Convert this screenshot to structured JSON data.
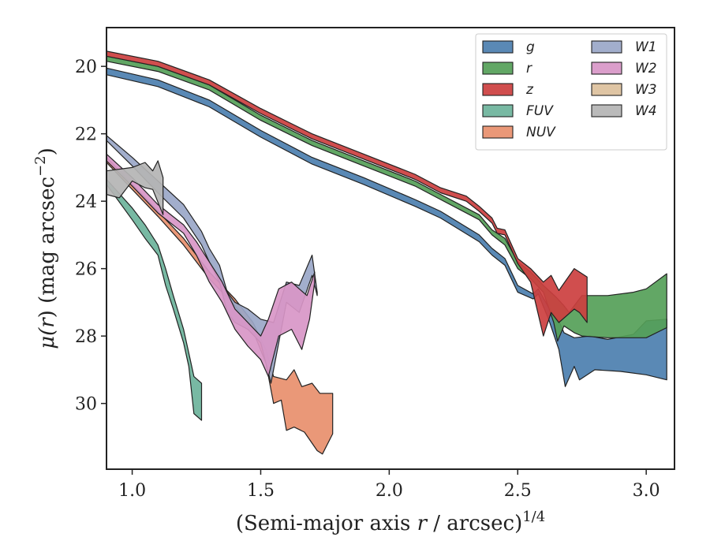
{
  "chart_data": {
    "type": "area",
    "xlabel_parts": [
      "(Semi-major axis ",
      "r",
      " / arcsec)",
      "1/4"
    ],
    "ylabel_parts": [
      "μ(",
      "r",
      ") (mag arcsec",
      "−2",
      ")"
    ],
    "xlim": [
      0.9,
      3.11
    ],
    "ylim": [
      31.95,
      18.85
    ],
    "y_inverted": true,
    "xticks": [
      1.0,
      1.5,
      2.0,
      2.5,
      3.0
    ],
    "xtick_labels": [
      "1.0",
      "1.5",
      "2.0",
      "2.5",
      "3.0"
    ],
    "yticks": [
      20,
      22,
      24,
      26,
      28,
      30
    ],
    "ytick_labels": [
      "20",
      "22",
      "24",
      "26",
      "28",
      "30"
    ],
    "grid": false,
    "legend_position": "top-right",
    "legend_columns": 2,
    "series": [
      {
        "name": "g",
        "color": "#4c7faf",
        "upper": [
          [
            0.9,
            20.05
          ],
          [
            1.1,
            20.4
          ],
          [
            1.3,
            21.0
          ],
          [
            1.5,
            21.9
          ],
          [
            1.7,
            22.7
          ],
          [
            1.9,
            23.3
          ],
          [
            2.1,
            23.95
          ],
          [
            2.2,
            24.3
          ],
          [
            2.35,
            25.0
          ],
          [
            2.4,
            25.4
          ],
          [
            2.45,
            25.7
          ],
          [
            2.5,
            26.5
          ],
          [
            2.56,
            26.75
          ],
          [
            2.58,
            26.6
          ],
          [
            2.62,
            27.15
          ],
          [
            2.66,
            27.55
          ],
          [
            2.68,
            27.9
          ],
          [
            2.72,
            28.05
          ],
          [
            2.78,
            28.0
          ],
          [
            2.85,
            28.1
          ],
          [
            2.95,
            27.95
          ],
          [
            3.0,
            27.55
          ],
          [
            3.08,
            27.5
          ]
        ],
        "lower": [
          [
            0.9,
            20.25
          ],
          [
            1.1,
            20.6
          ],
          [
            1.3,
            21.2
          ],
          [
            1.5,
            22.1
          ],
          [
            1.7,
            22.9
          ],
          [
            1.9,
            23.5
          ],
          [
            2.1,
            24.15
          ],
          [
            2.2,
            24.5
          ],
          [
            2.35,
            25.2
          ],
          [
            2.4,
            25.6
          ],
          [
            2.45,
            25.9
          ],
          [
            2.5,
            26.7
          ],
          [
            2.56,
            26.9
          ],
          [
            2.58,
            26.75
          ],
          [
            2.62,
            27.5
          ],
          [
            2.66,
            28.4
          ],
          [
            2.685,
            29.5
          ],
          [
            2.72,
            28.9
          ],
          [
            2.74,
            29.3
          ],
          [
            2.8,
            29.0
          ],
          [
            2.9,
            29.05
          ],
          [
            3.0,
            29.15
          ],
          [
            3.08,
            29.3
          ]
        ]
      },
      {
        "name": "r",
        "color": "#55a058",
        "upper": [
          [
            0.9,
            19.7
          ],
          [
            1.1,
            20.0
          ],
          [
            1.3,
            20.55
          ],
          [
            1.5,
            21.45
          ],
          [
            1.7,
            22.2
          ],
          [
            1.9,
            22.8
          ],
          [
            2.1,
            23.4
          ],
          [
            2.2,
            23.8
          ],
          [
            2.35,
            24.4
          ],
          [
            2.4,
            24.85
          ],
          [
            2.45,
            25.1
          ],
          [
            2.5,
            25.8
          ],
          [
            2.55,
            26.1
          ],
          [
            2.6,
            26.5
          ],
          [
            2.65,
            26.85
          ],
          [
            2.68,
            27.1
          ],
          [
            2.7,
            27.3
          ],
          [
            2.75,
            26.8
          ],
          [
            2.85,
            26.8
          ],
          [
            2.95,
            26.7
          ],
          [
            3.0,
            26.6
          ],
          [
            3.08,
            26.15
          ]
        ],
        "lower": [
          [
            0.9,
            19.85
          ],
          [
            1.1,
            20.15
          ],
          [
            1.3,
            20.7
          ],
          [
            1.5,
            21.6
          ],
          [
            1.7,
            22.35
          ],
          [
            1.9,
            22.95
          ],
          [
            2.1,
            23.55
          ],
          [
            2.2,
            23.95
          ],
          [
            2.35,
            24.55
          ],
          [
            2.4,
            25.0
          ],
          [
            2.45,
            25.3
          ],
          [
            2.5,
            26.0
          ],
          [
            2.55,
            26.3
          ],
          [
            2.6,
            26.7
          ],
          [
            2.64,
            27.6
          ],
          [
            2.655,
            28.15
          ],
          [
            2.68,
            27.7
          ],
          [
            2.72,
            27.9
          ],
          [
            2.75,
            28.0
          ],
          [
            2.85,
            28.05
          ],
          [
            2.95,
            28.05
          ],
          [
            3.0,
            28.05
          ],
          [
            3.08,
            27.75
          ]
        ]
      },
      {
        "name": "z",
        "color": "#cc3f3f",
        "upper": [
          [
            0.9,
            19.55
          ],
          [
            1.1,
            19.85
          ],
          [
            1.3,
            20.4
          ],
          [
            1.5,
            21.25
          ],
          [
            1.7,
            22.0
          ],
          [
            1.9,
            22.6
          ],
          [
            2.1,
            23.2
          ],
          [
            2.2,
            23.6
          ],
          [
            2.3,
            23.85
          ],
          [
            2.35,
            24.15
          ],
          [
            2.4,
            24.5
          ],
          [
            2.42,
            24.8
          ],
          [
            2.45,
            24.85
          ],
          [
            2.5,
            25.7
          ],
          [
            2.55,
            26.0
          ],
          [
            2.6,
            26.4
          ],
          [
            2.63,
            26.2
          ],
          [
            2.66,
            26.65
          ],
          [
            2.72,
            26.0
          ],
          [
            2.77,
            26.25
          ]
        ],
        "lower": [
          [
            0.9,
            19.7
          ],
          [
            1.1,
            20.0
          ],
          [
            1.3,
            20.55
          ],
          [
            1.5,
            21.4
          ],
          [
            1.7,
            22.15
          ],
          [
            1.9,
            22.75
          ],
          [
            2.1,
            23.35
          ],
          [
            2.2,
            23.75
          ],
          [
            2.3,
            24.0
          ],
          [
            2.35,
            24.3
          ],
          [
            2.4,
            24.65
          ],
          [
            2.42,
            24.95
          ],
          [
            2.45,
            25.0
          ],
          [
            2.5,
            25.85
          ],
          [
            2.55,
            26.4
          ],
          [
            2.6,
            28.0
          ],
          [
            2.63,
            27.3
          ],
          [
            2.66,
            27.6
          ],
          [
            2.72,
            27.2
          ],
          [
            2.74,
            27.3
          ],
          [
            2.77,
            27.6
          ]
        ]
      },
      {
        "name": "FUV",
        "color": "#6db39b",
        "upper": [
          [
            0.9,
            23.35
          ],
          [
            1.0,
            24.2
          ],
          [
            1.05,
            24.7
          ],
          [
            1.1,
            25.3
          ],
          [
            1.13,
            26.0
          ],
          [
            1.16,
            26.8
          ],
          [
            1.2,
            27.8
          ],
          [
            1.22,
            28.5
          ],
          [
            1.24,
            29.2
          ],
          [
            1.27,
            29.4
          ]
        ],
        "lower": [
          [
            0.9,
            23.5
          ],
          [
            1.0,
            24.55
          ],
          [
            1.05,
            25.1
          ],
          [
            1.1,
            25.6
          ],
          [
            1.13,
            26.5
          ],
          [
            1.16,
            27.2
          ],
          [
            1.2,
            28.2
          ],
          [
            1.22,
            28.9
          ],
          [
            1.24,
            30.3
          ],
          [
            1.27,
            30.5
          ]
        ]
      },
      {
        "name": "NUV",
        "color": "#e88f6c",
        "upper": [
          [
            0.9,
            22.7
          ],
          [
            1.0,
            23.5
          ],
          [
            1.1,
            24.3
          ],
          [
            1.2,
            25.1
          ],
          [
            1.3,
            26.1
          ],
          [
            1.4,
            26.9
          ],
          [
            1.47,
            27.6
          ],
          [
            1.52,
            28.4
          ],
          [
            1.55,
            29.2
          ],
          [
            1.6,
            29.3
          ],
          [
            1.63,
            29.0
          ],
          [
            1.66,
            29.5
          ],
          [
            1.7,
            29.4
          ],
          [
            1.73,
            29.7
          ],
          [
            1.78,
            29.7
          ]
        ],
        "lower": [
          [
            0.9,
            22.85
          ],
          [
            1.0,
            23.65
          ],
          [
            1.1,
            24.45
          ],
          [
            1.2,
            25.3
          ],
          [
            1.3,
            26.3
          ],
          [
            1.4,
            27.1
          ],
          [
            1.47,
            27.85
          ],
          [
            1.52,
            28.8
          ],
          [
            1.55,
            30.0
          ],
          [
            1.58,
            29.9
          ],
          [
            1.6,
            30.8
          ],
          [
            1.63,
            30.7
          ],
          [
            1.67,
            30.85
          ],
          [
            1.72,
            31.4
          ],
          [
            1.74,
            31.5
          ],
          [
            1.78,
            30.9
          ]
        ]
      },
      {
        "name": "W1",
        "color": "#9aa7c8",
        "upper": [
          [
            0.9,
            22.05
          ],
          [
            1.0,
            22.7
          ],
          [
            1.1,
            23.4
          ],
          [
            1.2,
            24.1
          ],
          [
            1.27,
            24.9
          ],
          [
            1.3,
            25.4
          ],
          [
            1.34,
            25.9
          ],
          [
            1.37,
            26.7
          ],
          [
            1.4,
            27.0
          ],
          [
            1.45,
            27.2
          ],
          [
            1.5,
            27.5
          ],
          [
            1.55,
            27.6
          ],
          [
            1.6,
            26.4
          ],
          [
            1.65,
            26.5
          ],
          [
            1.7,
            25.6
          ],
          [
            1.72,
            26.7
          ]
        ],
        "lower": [
          [
            0.9,
            22.2
          ],
          [
            1.0,
            22.95
          ],
          [
            1.1,
            23.75
          ],
          [
            1.2,
            24.5
          ],
          [
            1.27,
            25.3
          ],
          [
            1.3,
            25.8
          ],
          [
            1.34,
            26.4
          ],
          [
            1.37,
            27.3
          ],
          [
            1.4,
            27.6
          ],
          [
            1.45,
            27.8
          ],
          [
            1.5,
            28.2
          ],
          [
            1.54,
            29.4
          ],
          [
            1.57,
            28.2
          ],
          [
            1.6,
            27.0
          ],
          [
            1.65,
            27.3
          ],
          [
            1.7,
            26.2
          ],
          [
            1.72,
            26.8
          ]
        ]
      },
      {
        "name": "W2",
        "color": "#d896c7",
        "upper": [
          [
            0.9,
            22.6
          ],
          [
            1.0,
            23.3
          ],
          [
            1.1,
            24.1
          ],
          [
            1.2,
            24.7
          ],
          [
            1.25,
            25.2
          ],
          [
            1.3,
            25.8
          ],
          [
            1.35,
            26.4
          ],
          [
            1.4,
            27.2
          ],
          [
            1.45,
            27.6
          ],
          [
            1.5,
            28.0
          ],
          [
            1.53,
            27.5
          ],
          [
            1.57,
            26.6
          ],
          [
            1.62,
            26.4
          ],
          [
            1.65,
            26.6
          ],
          [
            1.68,
            26.8
          ],
          [
            1.71,
            26.1
          ]
        ],
        "lower": [
          [
            0.9,
            22.8
          ],
          [
            1.0,
            23.55
          ],
          [
            1.1,
            24.35
          ],
          [
            1.2,
            24.95
          ],
          [
            1.25,
            25.6
          ],
          [
            1.3,
            26.4
          ],
          [
            1.35,
            27.0
          ],
          [
            1.4,
            27.8
          ],
          [
            1.45,
            28.3
          ],
          [
            1.5,
            28.7
          ],
          [
            1.53,
            29.2
          ],
          [
            1.57,
            28.0
          ],
          [
            1.62,
            27.8
          ],
          [
            1.66,
            28.4
          ],
          [
            1.69,
            27.5
          ],
          [
            1.71,
            26.4
          ]
        ]
      },
      {
        "name": "W3",
        "color": "#dcc09c",
        "upper": [],
        "lower": []
      },
      {
        "name": "W4",
        "color": "#b4b4b4",
        "upper": [
          [
            0.9,
            23.1
          ],
          [
            1.0,
            23.0
          ],
          [
            1.05,
            22.85
          ],
          [
            1.08,
            23.1
          ],
          [
            1.1,
            22.8
          ],
          [
            1.12,
            23.3
          ]
        ],
        "lower": [
          [
            0.9,
            23.8
          ],
          [
            0.95,
            23.9
          ],
          [
            1.0,
            23.4
          ],
          [
            1.05,
            23.6
          ],
          [
            1.08,
            23.65
          ],
          [
            1.12,
            24.4
          ]
        ]
      }
    ]
  }
}
